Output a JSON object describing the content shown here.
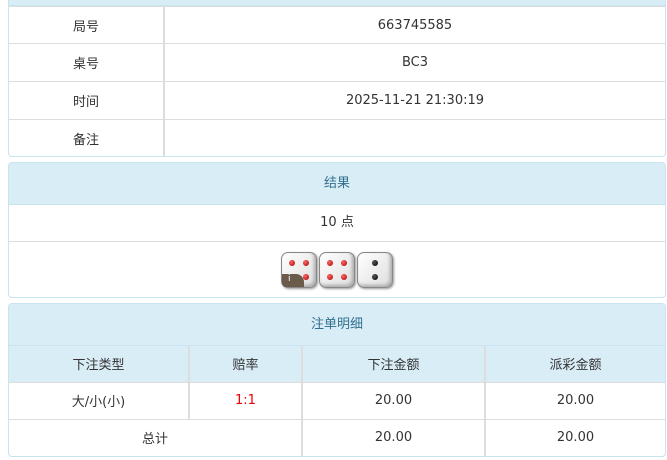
{
  "info": {
    "rows": [
      {
        "label": "局号",
        "value": "663745585"
      },
      {
        "label": "桌号",
        "value": "BC3"
      },
      {
        "label": "时间",
        "value": "2025-11-21 21:30:19"
      },
      {
        "label": "备注",
        "value": ""
      }
    ]
  },
  "result": {
    "title": "结果",
    "points": "10 点",
    "dice": [
      4,
      4,
      2
    ],
    "badge": "i"
  },
  "bets": {
    "title": "注单明细",
    "headers": [
      "下注类型",
      "赔率",
      "下注金额",
      "派彩金额"
    ],
    "rows": [
      {
        "type": "大/小(小)",
        "odds": "1:1",
        "amount": "20.00",
        "payout": "20.00"
      }
    ],
    "total": {
      "label": "总计",
      "amount": "20.00",
      "payout": "20.00"
    },
    "odds_color": "#ee0000"
  }
}
